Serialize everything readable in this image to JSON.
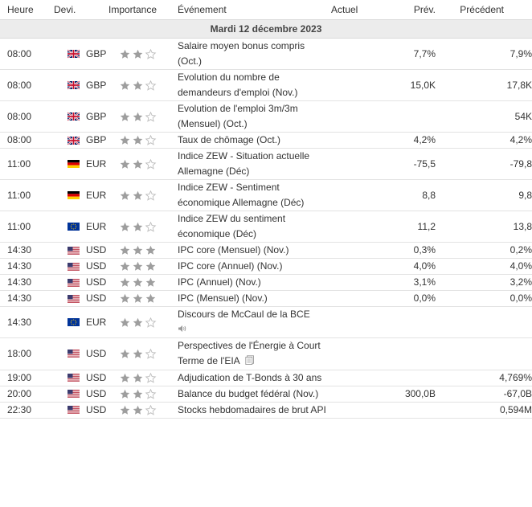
{
  "header": {
    "time": "Heure",
    "currency": "Devi.",
    "importance": "Importance",
    "event": "Événement",
    "actual": "Actuel",
    "forecast": "Prév.",
    "previous": "Précédent"
  },
  "date_label": "Mardi 12 décembre 2023",
  "colors": {
    "star_filled": "#9e9e9e",
    "star_empty": "#bdbdbd",
    "row_border": "#e3e3e3",
    "date_bg": "#ececec"
  },
  "rows": [
    {
      "time": "08:00",
      "flag": "GB",
      "currency": "GBP",
      "stars": 2,
      "event": "Salaire moyen bonus compris (Oct.)",
      "actual": "",
      "forecast": "7,7%",
      "previous": "7,9%",
      "icon": ""
    },
    {
      "time": "08:00",
      "flag": "GB",
      "currency": "GBP",
      "stars": 2,
      "event": "Evolution du nombre de demandeurs d'emploi (Nov.)",
      "actual": "",
      "forecast": "15,0K",
      "previous": "17,8K",
      "icon": ""
    },
    {
      "time": "08:00",
      "flag": "GB",
      "currency": "GBP",
      "stars": 2,
      "event": "Evolution de l'emploi 3m/3m (Mensuel) (Oct.)",
      "actual": "",
      "forecast": "",
      "previous": "54K",
      "icon": ""
    },
    {
      "time": "08:00",
      "flag": "GB",
      "currency": "GBP",
      "stars": 2,
      "event": "Taux de chômage (Oct.)",
      "actual": "",
      "forecast": "4,2%",
      "previous": "4,2%",
      "icon": ""
    },
    {
      "time": "11:00",
      "flag": "DE",
      "currency": "EUR",
      "stars": 2,
      "event": "Indice ZEW - Situation actuelle Allemagne (Déc)",
      "actual": "",
      "forecast": "-75,5",
      "previous": "-79,8",
      "icon": ""
    },
    {
      "time": "11:00",
      "flag": "DE",
      "currency": "EUR",
      "stars": 2,
      "event": "Indice ZEW - Sentiment économique Allemagne (Déc)",
      "actual": "",
      "forecast": "8,8",
      "previous": "9,8",
      "icon": ""
    },
    {
      "time": "11:00",
      "flag": "EU",
      "currency": "EUR",
      "stars": 2,
      "event": "Indice ZEW du sentiment économique (Déc)",
      "actual": "",
      "forecast": "11,2",
      "previous": "13,8",
      "icon": ""
    },
    {
      "time": "14:30",
      "flag": "US",
      "currency": "USD",
      "stars": 3,
      "event": "IPC core (Mensuel) (Nov.)",
      "actual": "",
      "forecast": "0,3%",
      "previous": "0,2%",
      "icon": ""
    },
    {
      "time": "14:30",
      "flag": "US",
      "currency": "USD",
      "stars": 3,
      "event": "IPC core (Annuel) (Nov.)",
      "actual": "",
      "forecast": "4,0%",
      "previous": "4,0%",
      "icon": ""
    },
    {
      "time": "14:30",
      "flag": "US",
      "currency": "USD",
      "stars": 3,
      "event": "IPC (Annuel) (Nov.)",
      "actual": "",
      "forecast": "3,1%",
      "previous": "3,2%",
      "icon": ""
    },
    {
      "time": "14:30",
      "flag": "US",
      "currency": "USD",
      "stars": 3,
      "event": "IPC (Mensuel) (Nov.)",
      "actual": "",
      "forecast": "0,0%",
      "previous": "0,0%",
      "icon": ""
    },
    {
      "time": "14:30",
      "flag": "EU",
      "currency": "EUR",
      "stars": 2,
      "event": "Discours de McCaul de la BCE",
      "actual": "",
      "forecast": "",
      "previous": "",
      "icon": "speaker-icon"
    },
    {
      "time": "18:00",
      "flag": "US",
      "currency": "USD",
      "stars": 2,
      "event": "Perspectives de l'Énergie à Court Terme de l'EIA",
      "actual": "",
      "forecast": "",
      "previous": "",
      "icon": "report-icon"
    },
    {
      "time": "19:00",
      "flag": "US",
      "currency": "USD",
      "stars": 2,
      "event": "Adjudication de T-Bonds à 30 ans",
      "actual": "",
      "forecast": "",
      "previous": "4,769%",
      "icon": ""
    },
    {
      "time": "20:00",
      "flag": "US",
      "currency": "USD",
      "stars": 2,
      "event": "Balance du budget fédéral (Nov.)",
      "actual": "",
      "forecast": "300,0B",
      "previous": "-67,0B",
      "icon": ""
    },
    {
      "time": "22:30",
      "flag": "US",
      "currency": "USD",
      "stars": 2,
      "event": "Stocks hebdomadaires de brut API",
      "actual": "",
      "forecast": "",
      "previous": "0,594M",
      "icon": ""
    }
  ]
}
